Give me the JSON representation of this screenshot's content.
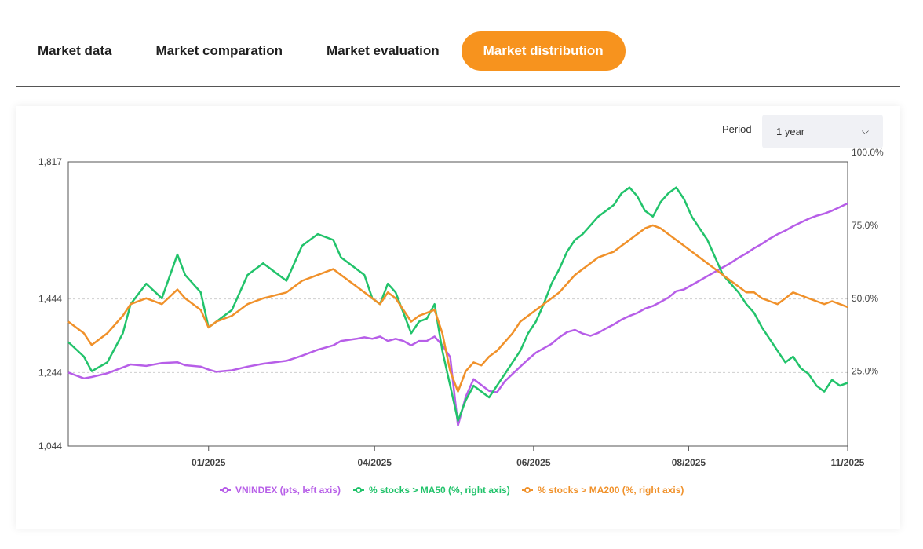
{
  "tabs": [
    {
      "label": "Market data",
      "active": false
    },
    {
      "label": "Market comparation",
      "active": false
    },
    {
      "label": "Market evaluation",
      "active": false
    },
    {
      "label": "Market distribution",
      "active": true
    }
  ],
  "period": {
    "label": "Period",
    "value": "1 year"
  },
  "colors": {
    "accent": "#f7931e",
    "vnindex": "#b75ee8",
    "ma50": "#22c36b",
    "ma200": "#f0912a",
    "grid": "#cfcfcf"
  },
  "chart_data": {
    "type": "line",
    "title": "",
    "left_axis": {
      "ticks": [
        1044,
        1244,
        1444,
        1817
      ],
      "tick_labels": [
        "1,044",
        "1,244",
        "1,444",
        "1,817"
      ],
      "ylim": [
        1044,
        1817
      ]
    },
    "right_axis": {
      "ticks": [
        25,
        50,
        75,
        100
      ],
      "tick_labels": [
        "25.0%",
        "50.0%",
        "75.0%",
        "100.0%"
      ],
      "ylim": [
        -0.7,
        96.8
      ]
    },
    "x_ticks": [
      {
        "label": "01/2025",
        "t": 0.18
      },
      {
        "label": "04/2025",
        "t": 0.393
      },
      {
        "label": "06/2025",
        "t": 0.597
      },
      {
        "label": "08/2025",
        "t": 0.796
      },
      {
        "label": "11/2025",
        "t": 1.0
      }
    ],
    "x_range": [
      0,
      1
    ],
    "grid": true,
    "legend_position": "bottom",
    "series": [
      {
        "name": "VNINDEX (pts, left axis)",
        "color": "#b75ee8",
        "axis": "left",
        "points": [
          [
            0,
            1244
          ],
          [
            0.02,
            1228
          ],
          [
            0.03,
            1232
          ],
          [
            0.05,
            1242
          ],
          [
            0.07,
            1258
          ],
          [
            0.08,
            1266
          ],
          [
            0.1,
            1262
          ],
          [
            0.12,
            1270
          ],
          [
            0.14,
            1272
          ],
          [
            0.15,
            1264
          ],
          [
            0.17,
            1260
          ],
          [
            0.18,
            1252
          ],
          [
            0.19,
            1246
          ],
          [
            0.21,
            1250
          ],
          [
            0.23,
            1260
          ],
          [
            0.25,
            1268
          ],
          [
            0.28,
            1276
          ],
          [
            0.3,
            1290
          ],
          [
            0.32,
            1306
          ],
          [
            0.34,
            1318
          ],
          [
            0.35,
            1330
          ],
          [
            0.37,
            1336
          ],
          [
            0.38,
            1340
          ],
          [
            0.39,
            1336
          ],
          [
            0.4,
            1342
          ],
          [
            0.41,
            1330
          ],
          [
            0.42,
            1336
          ],
          [
            0.43,
            1330
          ],
          [
            0.44,
            1318
          ],
          [
            0.45,
            1330
          ],
          [
            0.46,
            1330
          ],
          [
            0.47,
            1342
          ],
          [
            0.48,
            1318
          ],
          [
            0.49,
            1286
          ],
          [
            0.5,
            1100
          ],
          [
            0.51,
            1178
          ],
          [
            0.52,
            1226
          ],
          [
            0.53,
            1210
          ],
          [
            0.54,
            1194
          ],
          [
            0.55,
            1190
          ],
          [
            0.56,
            1220
          ],
          [
            0.57,
            1240
          ],
          [
            0.58,
            1260
          ],
          [
            0.59,
            1280
          ],
          [
            0.6,
            1298
          ],
          [
            0.61,
            1310
          ],
          [
            0.62,
            1322
          ],
          [
            0.63,
            1340
          ],
          [
            0.64,
            1354
          ],
          [
            0.65,
            1360
          ],
          [
            0.66,
            1350
          ],
          [
            0.67,
            1344
          ],
          [
            0.68,
            1352
          ],
          [
            0.69,
            1364
          ],
          [
            0.7,
            1375
          ],
          [
            0.71,
            1388
          ],
          [
            0.72,
            1398
          ],
          [
            0.73,
            1406
          ],
          [
            0.74,
            1418
          ],
          [
            0.75,
            1425
          ],
          [
            0.76,
            1436
          ],
          [
            0.77,
            1448
          ],
          [
            0.78,
            1465
          ],
          [
            0.79,
            1470
          ],
          [
            0.8,
            1482
          ],
          [
            0.81,
            1494
          ],
          [
            0.82,
            1506
          ],
          [
            0.83,
            1518
          ],
          [
            0.84,
            1530
          ],
          [
            0.85,
            1542
          ],
          [
            0.86,
            1556
          ],
          [
            0.87,
            1568
          ],
          [
            0.88,
            1582
          ],
          [
            0.89,
            1594
          ],
          [
            0.9,
            1608
          ],
          [
            0.91,
            1620
          ],
          [
            0.92,
            1630
          ],
          [
            0.93,
            1642
          ],
          [
            0.94,
            1652
          ],
          [
            0.95,
            1662
          ],
          [
            0.96,
            1670
          ],
          [
            0.97,
            1676
          ],
          [
            0.98,
            1684
          ],
          [
            0.99,
            1694
          ],
          [
            1.0,
            1704
          ]
        ]
      },
      {
        "name": "% stocks > MA50 (%, right axis)",
        "color": "#22c36b",
        "axis": "right",
        "points": [
          [
            0,
            35
          ],
          [
            0.02,
            30
          ],
          [
            0.03,
            25
          ],
          [
            0.05,
            28
          ],
          [
            0.07,
            38
          ],
          [
            0.08,
            48
          ],
          [
            0.1,
            55
          ],
          [
            0.12,
            50
          ],
          [
            0.14,
            65
          ],
          [
            0.15,
            58
          ],
          [
            0.17,
            52
          ],
          [
            0.18,
            40
          ],
          [
            0.19,
            42
          ],
          [
            0.21,
            46
          ],
          [
            0.23,
            58
          ],
          [
            0.25,
            62
          ],
          [
            0.28,
            56
          ],
          [
            0.3,
            68
          ],
          [
            0.32,
            72
          ],
          [
            0.34,
            70
          ],
          [
            0.35,
            64
          ],
          [
            0.37,
            60
          ],
          [
            0.38,
            58
          ],
          [
            0.39,
            50
          ],
          [
            0.4,
            48
          ],
          [
            0.41,
            55
          ],
          [
            0.42,
            52
          ],
          [
            0.43,
            45
          ],
          [
            0.44,
            38
          ],
          [
            0.45,
            42
          ],
          [
            0.46,
            43
          ],
          [
            0.47,
            48
          ],
          [
            0.48,
            32
          ],
          [
            0.49,
            20
          ],
          [
            0.5,
            8
          ],
          [
            0.51,
            15
          ],
          [
            0.52,
            20
          ],
          [
            0.53,
            18
          ],
          [
            0.54,
            16
          ],
          [
            0.55,
            20
          ],
          [
            0.56,
            24
          ],
          [
            0.57,
            28
          ],
          [
            0.58,
            32
          ],
          [
            0.59,
            38
          ],
          [
            0.6,
            42
          ],
          [
            0.61,
            48
          ],
          [
            0.62,
            55
          ],
          [
            0.63,
            60
          ],
          [
            0.64,
            66
          ],
          [
            0.65,
            70
          ],
          [
            0.66,
            72
          ],
          [
            0.67,
            75
          ],
          [
            0.68,
            78
          ],
          [
            0.69,
            80
          ],
          [
            0.7,
            82
          ],
          [
            0.71,
            86
          ],
          [
            0.72,
            88
          ],
          [
            0.73,
            85
          ],
          [
            0.74,
            80
          ],
          [
            0.75,
            78
          ],
          [
            0.76,
            83
          ],
          [
            0.77,
            86
          ],
          [
            0.78,
            88
          ],
          [
            0.79,
            84
          ],
          [
            0.8,
            78
          ],
          [
            0.81,
            74
          ],
          [
            0.82,
            70
          ],
          [
            0.83,
            64
          ],
          [
            0.84,
            58
          ],
          [
            0.85,
            55
          ],
          [
            0.86,
            52
          ],
          [
            0.87,
            48
          ],
          [
            0.88,
            45
          ],
          [
            0.89,
            40
          ],
          [
            0.9,
            36
          ],
          [
            0.91,
            32
          ],
          [
            0.92,
            28
          ],
          [
            0.93,
            30
          ],
          [
            0.94,
            26
          ],
          [
            0.95,
            24
          ],
          [
            0.96,
            20
          ],
          [
            0.97,
            18
          ],
          [
            0.98,
            22
          ],
          [
            0.99,
            20
          ],
          [
            1.0,
            21
          ]
        ]
      },
      {
        "name": "% stocks > MA200 (%, right axis)",
        "color": "#f0912a",
        "axis": "right",
        "points": [
          [
            0,
            42
          ],
          [
            0.02,
            38
          ],
          [
            0.03,
            34
          ],
          [
            0.05,
            38
          ],
          [
            0.07,
            44
          ],
          [
            0.08,
            48
          ],
          [
            0.1,
            50
          ],
          [
            0.12,
            48
          ],
          [
            0.14,
            53
          ],
          [
            0.15,
            50
          ],
          [
            0.17,
            46
          ],
          [
            0.18,
            40
          ],
          [
            0.19,
            42
          ],
          [
            0.21,
            44
          ],
          [
            0.23,
            48
          ],
          [
            0.25,
            50
          ],
          [
            0.28,
            52
          ],
          [
            0.3,
            56
          ],
          [
            0.32,
            58
          ],
          [
            0.34,
            60
          ],
          [
            0.35,
            58
          ],
          [
            0.37,
            54
          ],
          [
            0.38,
            52
          ],
          [
            0.39,
            50
          ],
          [
            0.4,
            48
          ],
          [
            0.41,
            52
          ],
          [
            0.42,
            50
          ],
          [
            0.43,
            46
          ],
          [
            0.44,
            42
          ],
          [
            0.45,
            44
          ],
          [
            0.46,
            45
          ],
          [
            0.47,
            46
          ],
          [
            0.48,
            38
          ],
          [
            0.49,
            25
          ],
          [
            0.5,
            18
          ],
          [
            0.51,
            25
          ],
          [
            0.52,
            28
          ],
          [
            0.53,
            27
          ],
          [
            0.54,
            30
          ],
          [
            0.55,
            32
          ],
          [
            0.56,
            35
          ],
          [
            0.57,
            38
          ],
          [
            0.58,
            42
          ],
          [
            0.59,
            44
          ],
          [
            0.6,
            46
          ],
          [
            0.61,
            48
          ],
          [
            0.62,
            50
          ],
          [
            0.63,
            52
          ],
          [
            0.64,
            55
          ],
          [
            0.65,
            58
          ],
          [
            0.66,
            60
          ],
          [
            0.67,
            62
          ],
          [
            0.68,
            64
          ],
          [
            0.69,
            65
          ],
          [
            0.7,
            66
          ],
          [
            0.71,
            68
          ],
          [
            0.72,
            70
          ],
          [
            0.73,
            72
          ],
          [
            0.74,
            74
          ],
          [
            0.75,
            75
          ],
          [
            0.76,
            74
          ],
          [
            0.77,
            72
          ],
          [
            0.78,
            70
          ],
          [
            0.79,
            68
          ],
          [
            0.8,
            66
          ],
          [
            0.81,
            64
          ],
          [
            0.82,
            62
          ],
          [
            0.83,
            60
          ],
          [
            0.84,
            58
          ],
          [
            0.85,
            56
          ],
          [
            0.86,
            54
          ],
          [
            0.87,
            52
          ],
          [
            0.88,
            52
          ],
          [
            0.89,
            50
          ],
          [
            0.9,
            49
          ],
          [
            0.91,
            48
          ],
          [
            0.92,
            50
          ],
          [
            0.93,
            52
          ],
          [
            0.94,
            51
          ],
          [
            0.95,
            50
          ],
          [
            0.96,
            49
          ],
          [
            0.97,
            48
          ],
          [
            0.98,
            49
          ],
          [
            0.99,
            48
          ],
          [
            1.0,
            47
          ]
        ]
      }
    ]
  }
}
